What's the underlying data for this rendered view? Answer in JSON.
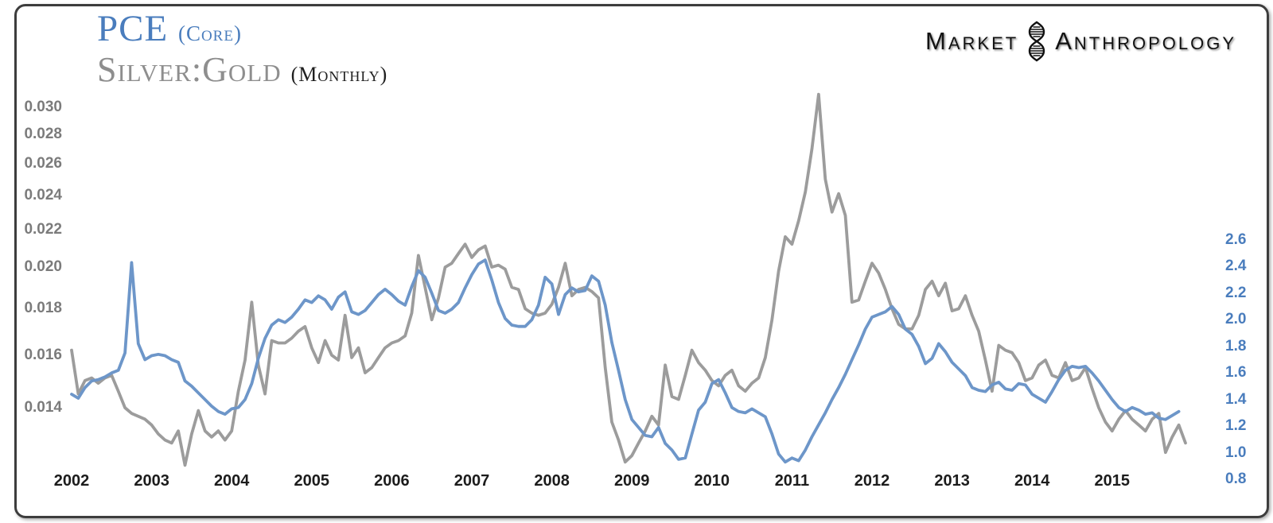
{
  "header": {
    "title_primary": "PCE",
    "title_primary_qualifier": "(Core)",
    "title_secondary": "Silver:Gold",
    "title_secondary_qualifier": "(Monthly)",
    "title_primary_color": "#4a7dbd",
    "title_secondary_color": "#8e8e8e"
  },
  "logo": {
    "word1": "Market",
    "word2": "Anthropology",
    "icon": "dna-helix-icon",
    "color": "#121212"
  },
  "chart_data": {
    "type": "line",
    "title": "PCE (Core) vs Silver:Gold (Monthly)",
    "grid": false,
    "legend_position": "title-as-legend-top-left",
    "x_axis": {
      "unit": "year",
      "start_year": 2002,
      "tick_labels": [
        "2002",
        "2003",
        "2004",
        "2005",
        "2006",
        "2007",
        "2008",
        "2009",
        "2010",
        "2011",
        "2012",
        "2013",
        "2014",
        "2015"
      ]
    },
    "left_axis": {
      "series": "Silver:Gold",
      "scale": "log",
      "range": [
        0.014,
        0.03
      ],
      "color": "#7b7b7b",
      "tick_labels": [
        "0.030",
        "0.028",
        "0.026",
        "0.024",
        "0.022",
        "0.020",
        "0.018",
        "0.016",
        "0.014"
      ]
    },
    "right_axis": {
      "series": "PCE (Core)",
      "scale": "linear",
      "range": [
        0.8,
        2.6
      ],
      "color": "#4a7dbd",
      "tick_labels": [
        "2.6",
        "2.4",
        "2.2",
        "2.0",
        "1.8",
        "1.6",
        "1.4",
        "1.2",
        "1.0",
        "0.8"
      ]
    },
    "series": [
      {
        "name": "Silver:Gold",
        "axis": "left",
        "color": "#9c9c9c",
        "start_year": 2002,
        "interval_months": 1,
        "values": [
          0.0162,
          0.0145,
          0.015,
          0.0151,
          0.0149,
          0.0151,
          0.0152,
          0.0146,
          0.014,
          0.0138,
          0.0137,
          0.0136,
          0.0134,
          0.0131,
          0.0129,
          0.0128,
          0.0132,
          0.0121,
          0.0131,
          0.0139,
          0.0132,
          0.013,
          0.0132,
          0.0129,
          0.0132,
          0.0146,
          0.0158,
          0.0183,
          0.0156,
          0.0145,
          0.0166,
          0.0165,
          0.0165,
          0.0167,
          0.017,
          0.0172,
          0.0163,
          0.0157,
          0.0166,
          0.016,
          0.0158,
          0.0177,
          0.0159,
          0.0163,
          0.0153,
          0.0155,
          0.0159,
          0.0163,
          0.0165,
          0.0166,
          0.0168,
          0.0178,
          0.0206,
          0.019,
          0.0175,
          0.0185,
          0.02,
          0.0202,
          0.0207,
          0.0212,
          0.0205,
          0.0209,
          0.0211,
          0.02,
          0.0201,
          0.0199,
          0.019,
          0.0189,
          0.018,
          0.0178,
          0.0177,
          0.0178,
          0.0182,
          0.019,
          0.0202,
          0.0186,
          0.0189,
          0.019,
          0.0188,
          0.0185,
          0.0155,
          0.0135,
          0.0129,
          0.0122,
          0.0124,
          0.0128,
          0.0132,
          0.0137,
          0.0134,
          0.0156,
          0.0144,
          0.0143,
          0.0152,
          0.0162,
          0.0157,
          0.0154,
          0.015,
          0.0148,
          0.0152,
          0.0154,
          0.0148,
          0.0146,
          0.0149,
          0.0151,
          0.0159,
          0.0175,
          0.0198,
          0.0216,
          0.0212,
          0.0225,
          0.0242,
          0.027,
          0.031,
          0.025,
          0.023,
          0.0241,
          0.0228,
          0.0183,
          0.0184,
          0.0193,
          0.0202,
          0.0197,
          0.0189,
          0.018,
          0.0173,
          0.0171,
          0.0171,
          0.0177,
          0.0189,
          0.0193,
          0.0186,
          0.0192,
          0.0179,
          0.018,
          0.0186,
          0.0177,
          0.017,
          0.0158,
          0.0146,
          0.0164,
          0.0162,
          0.0161,
          0.0157,
          0.015,
          0.0151,
          0.0156,
          0.0158,
          0.0152,
          0.0151,
          0.0157,
          0.015,
          0.0151,
          0.0155,
          0.0147,
          0.014,
          0.0135,
          0.0132,
          0.0136,
          0.0139,
          0.0136,
          0.0134,
          0.0132,
          0.0136,
          0.0138,
          0.0125,
          0.013,
          0.0134,
          0.0128
        ]
      },
      {
        "name": "PCE (Core)",
        "axis": "right",
        "color": "#6d96c9",
        "start_year": 2002,
        "interval_months": 1,
        "values": [
          1.44,
          1.41,
          1.49,
          1.54,
          1.55,
          1.57,
          1.6,
          1.62,
          1.75,
          2.43,
          1.82,
          1.7,
          1.73,
          1.74,
          1.73,
          1.7,
          1.68,
          1.54,
          1.5,
          1.45,
          1.4,
          1.35,
          1.31,
          1.29,
          1.33,
          1.34,
          1.4,
          1.52,
          1.71,
          1.86,
          1.96,
          2.0,
          1.98,
          2.02,
          2.08,
          2.15,
          2.13,
          2.18,
          2.15,
          2.08,
          2.17,
          2.21,
          2.06,
          2.04,
          2.07,
          2.13,
          2.19,
          2.23,
          2.19,
          2.14,
          2.11,
          2.25,
          2.37,
          2.32,
          2.2,
          2.07,
          2.05,
          2.08,
          2.13,
          2.24,
          2.34,
          2.42,
          2.45,
          2.3,
          2.13,
          2.01,
          1.96,
          1.95,
          1.95,
          2.0,
          2.11,
          2.32,
          2.27,
          2.04,
          2.19,
          2.24,
          2.21,
          2.22,
          2.33,
          2.29,
          2.11,
          1.83,
          1.62,
          1.4,
          1.25,
          1.19,
          1.13,
          1.12,
          1.19,
          1.07,
          1.02,
          0.95,
          0.96,
          1.14,
          1.32,
          1.38,
          1.52,
          1.55,
          1.45,
          1.34,
          1.31,
          1.3,
          1.33,
          1.3,
          1.27,
          1.14,
          0.99,
          0.93,
          0.96,
          0.94,
          1.02,
          1.12,
          1.21,
          1.3,
          1.4,
          1.49,
          1.59,
          1.7,
          1.81,
          1.93,
          2.02,
          2.04,
          2.06,
          2.1,
          2.04,
          1.93,
          1.89,
          1.8,
          1.67,
          1.71,
          1.82,
          1.76,
          1.68,
          1.63,
          1.58,
          1.49,
          1.47,
          1.46,
          1.51,
          1.53,
          1.48,
          1.47,
          1.52,
          1.51,
          1.44,
          1.41,
          1.38,
          1.46,
          1.55,
          1.62,
          1.65,
          1.64,
          1.65,
          1.6,
          1.54,
          1.47,
          1.4,
          1.34,
          1.31,
          1.34,
          1.32,
          1.29,
          1.3,
          1.26,
          1.25,
          1.28,
          1.31
        ]
      }
    ]
  }
}
